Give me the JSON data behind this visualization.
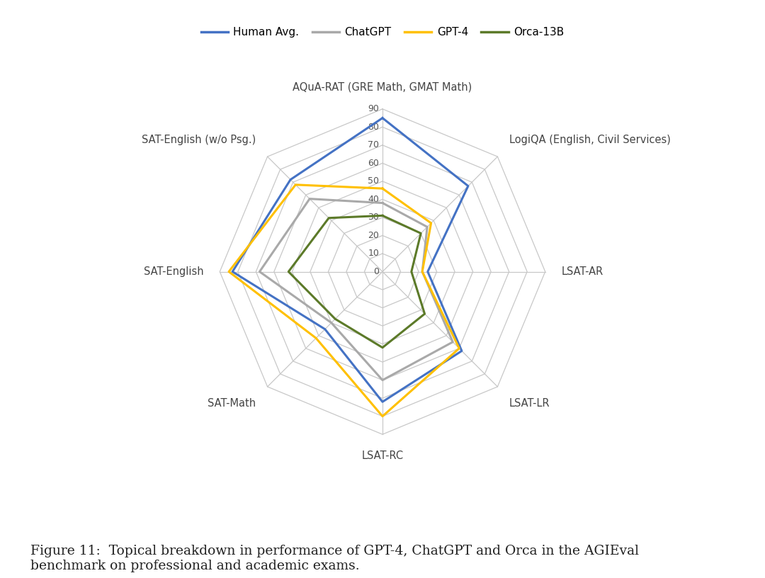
{
  "categories": [
    "AQuA-RAT (GRE Math, GMAT Math)",
    "LogiQA (English, Civil Services)",
    "LSAT-AR",
    "LSAT-LR",
    "LSAT-RC",
    "SAT-Math",
    "SAT-English",
    "SAT-English (w/o Psg.)"
  ],
  "series": {
    "Human Avg.": [
      85,
      67,
      25,
      62,
      72,
      45,
      83,
      72
    ],
    "ChatGPT": [
      38,
      35,
      22,
      55,
      60,
      40,
      68,
      57
    ],
    "GPT-4": [
      46,
      38,
      22,
      60,
      80,
      52,
      85,
      68
    ],
    "Orca-13B": [
      31,
      30,
      16,
      33,
      42,
      37,
      52,
      42
    ]
  },
  "colors": {
    "Human Avg.": "#4472C4",
    "ChatGPT": "#A9A9A9",
    "GPT-4": "#FFC000",
    "Orca-13B": "#5C7A29"
  },
  "r_min": 0,
  "r_max": 90,
  "r_ticks": [
    0,
    10,
    20,
    30,
    40,
    50,
    60,
    70,
    80,
    90
  ],
  "linewidth": 2.2,
  "figure_caption": "Figure 11:  Topical breakdown in performance of GPT-4, ChatGPT and Orca in the AGIEval\nbenchmark on professional and academic exams.",
  "background_color": "#FFFFFF",
  "grid_color": "#C8C8C8",
  "label_fontsize": 10.5,
  "tick_fontsize": 9,
  "legend_fontsize": 11,
  "caption_fontsize": 13.5
}
